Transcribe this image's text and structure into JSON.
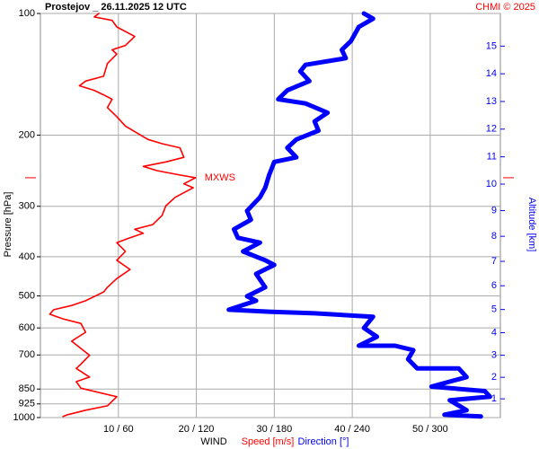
{
  "chart_data": {
    "type": "profile",
    "title": "Prostejov _ 26.11.2025 12 UTC",
    "credit": "CHMI © 2025",
    "x_label": "WIND",
    "y_label": "Pressure [hPa]",
    "y2_label": "Altitude [km]",
    "yscale": "log",
    "ylim": [
      100,
      1000
    ],
    "yticks": [
      100,
      200,
      300,
      400,
      500,
      600,
      700,
      850,
      925,
      1000
    ],
    "y2ticks": [
      1,
      2,
      3,
      4,
      5,
      6,
      7,
      8,
      9,
      10,
      11,
      12,
      13,
      14,
      15
    ],
    "y2_color": "#0000ff",
    "xlim": [
      0,
      59
    ],
    "x2lim": [
      0,
      354
    ],
    "xticks": [
      {
        "value": 10,
        "label": "10 / 60"
      },
      {
        "value": 20,
        "label": "20 / 120"
      },
      {
        "value": 30,
        "label": "30 / 180"
      },
      {
        "value": 40,
        "label": "40 / 240"
      },
      {
        "value": 50,
        "label": "50 / 300"
      }
    ],
    "grid": true,
    "annotation": {
      "label": "MXWS",
      "pressure": 255,
      "color": "#ff0000"
    },
    "series": [
      {
        "name": "Speed [m/s]",
        "color": "#ff0000",
        "axis": "x",
        "width": 1.6,
        "values": [
          7.5,
          6.9,
          9.2,
          9.8,
          12.1,
          10.9,
          9.2,
          9.8,
          8.6,
          8.1,
          5.8,
          5.0,
          6.9,
          8.1,
          9.2,
          8.6,
          9.8,
          10.9,
          13.8,
          15.6,
          17.9,
          18.4,
          16.1,
          13.2,
          15.0,
          17.9,
          19.9,
          18.4,
          19.6,
          17.3,
          16.1,
          15.6,
          14.4,
          12.1,
          13.2,
          11.5,
          9.8,
          10.9,
          9.8,
          11.5,
          9.8,
          8.6,
          8.1,
          5.8,
          4.0,
          1.7,
          1.2,
          2.9,
          5.2,
          5.8,
          4.0,
          6.3,
          5.2,
          4.6,
          6.3,
          4.6,
          5.2,
          9.8,
          8.6,
          5.8,
          3.5,
          2.9
        ],
        "pressure": [
          100,
          102,
          104,
          108,
          114,
          120,
          123,
          126,
          133,
          143,
          147,
          151,
          155,
          159,
          163,
          171,
          180,
          190,
          205,
          210,
          215,
          227,
          233,
          239,
          245,
          251,
          255,
          264,
          270,
          285,
          299,
          316,
          333,
          342,
          350,
          359,
          369,
          388,
          408,
          430,
          453,
          476,
          489,
          514,
          528,
          541,
          555,
          570,
          585,
          615,
          647,
          701,
          737,
          756,
          794,
          815,
          846,
          888,
          935,
          959,
          984,
          994
        ]
      },
      {
        "name": "Direction [°]",
        "color": "#0000ff",
        "axis": "x2",
        "width": 5,
        "values": [
          249,
          256,
          245,
          239,
          232,
          235,
          204,
          200,
          207,
          190,
          183,
          204,
          221,
          211,
          214,
          197,
          190,
          197,
          180,
          176,
          173,
          169,
          159,
          162,
          149,
          152,
          169,
          156,
          173,
          180,
          166,
          173,
          159,
          166,
          145,
          176,
          211,
          256,
          249,
          259,
          245,
          273,
          287,
          283,
          290,
          322,
          328,
          301,
          342,
          346,
          315,
          328,
          311,
          339
        ],
        "pressure": [
          100,
          103,
          108,
          117,
          123,
          129,
          134,
          139,
          147,
          155,
          163,
          167,
          176,
          185,
          195,
          205,
          215,
          227,
          233,
          251,
          270,
          285,
          308,
          324,
          342,
          359,
          369,
          388,
          408,
          419,
          441,
          476,
          501,
          514,
          541,
          547,
          552,
          563,
          600,
          631,
          664,
          664,
          681,
          717,
          756,
          756,
          794,
          838,
          860,
          888,
          906,
          959,
          984,
          994
        ]
      }
    ]
  }
}
